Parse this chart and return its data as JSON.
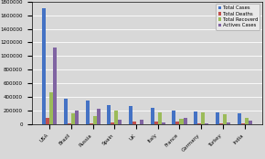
{
  "countries": [
    "USA",
    "Brazil",
    "Russia",
    "Spain",
    "UK",
    "Italy",
    "France",
    "Germany",
    "Turkey",
    "India"
  ],
  "total_cases": [
    1700000,
    370000,
    350000,
    285000,
    260000,
    235000,
    195000,
    190000,
    165000,
    155000
  ],
  "total_deaths": [
    95000,
    15000,
    5500,
    28000,
    41000,
    34000,
    30000,
    9000,
    4600,
    4400
  ],
  "total_recovered": [
    470000,
    155000,
    120000,
    195000,
    1500,
    175000,
    76000,
    174000,
    140000,
    95000
  ],
  "active_cases": [
    1130000,
    200000,
    225000,
    62000,
    58000,
    26000,
    88000,
    7000,
    20000,
    55000
  ],
  "colors": {
    "total_cases": "#4472C4",
    "total_deaths": "#C0504D",
    "total_recovered": "#9BBB59",
    "active_cases": "#8064A2"
  },
  "ylim": [
    0,
    1800000
  ],
  "yticks": [
    0,
    200000,
    400000,
    600000,
    800000,
    1000000,
    1200000,
    1400000,
    1600000,
    1800000
  ],
  "legend_labels": [
    "Total Cases",
    "Total Deaths",
    "Total Recoverd",
    "Actives Cases"
  ],
  "background_color": "#D8D8D8",
  "plot_bg_color": "#D8D8D8"
}
